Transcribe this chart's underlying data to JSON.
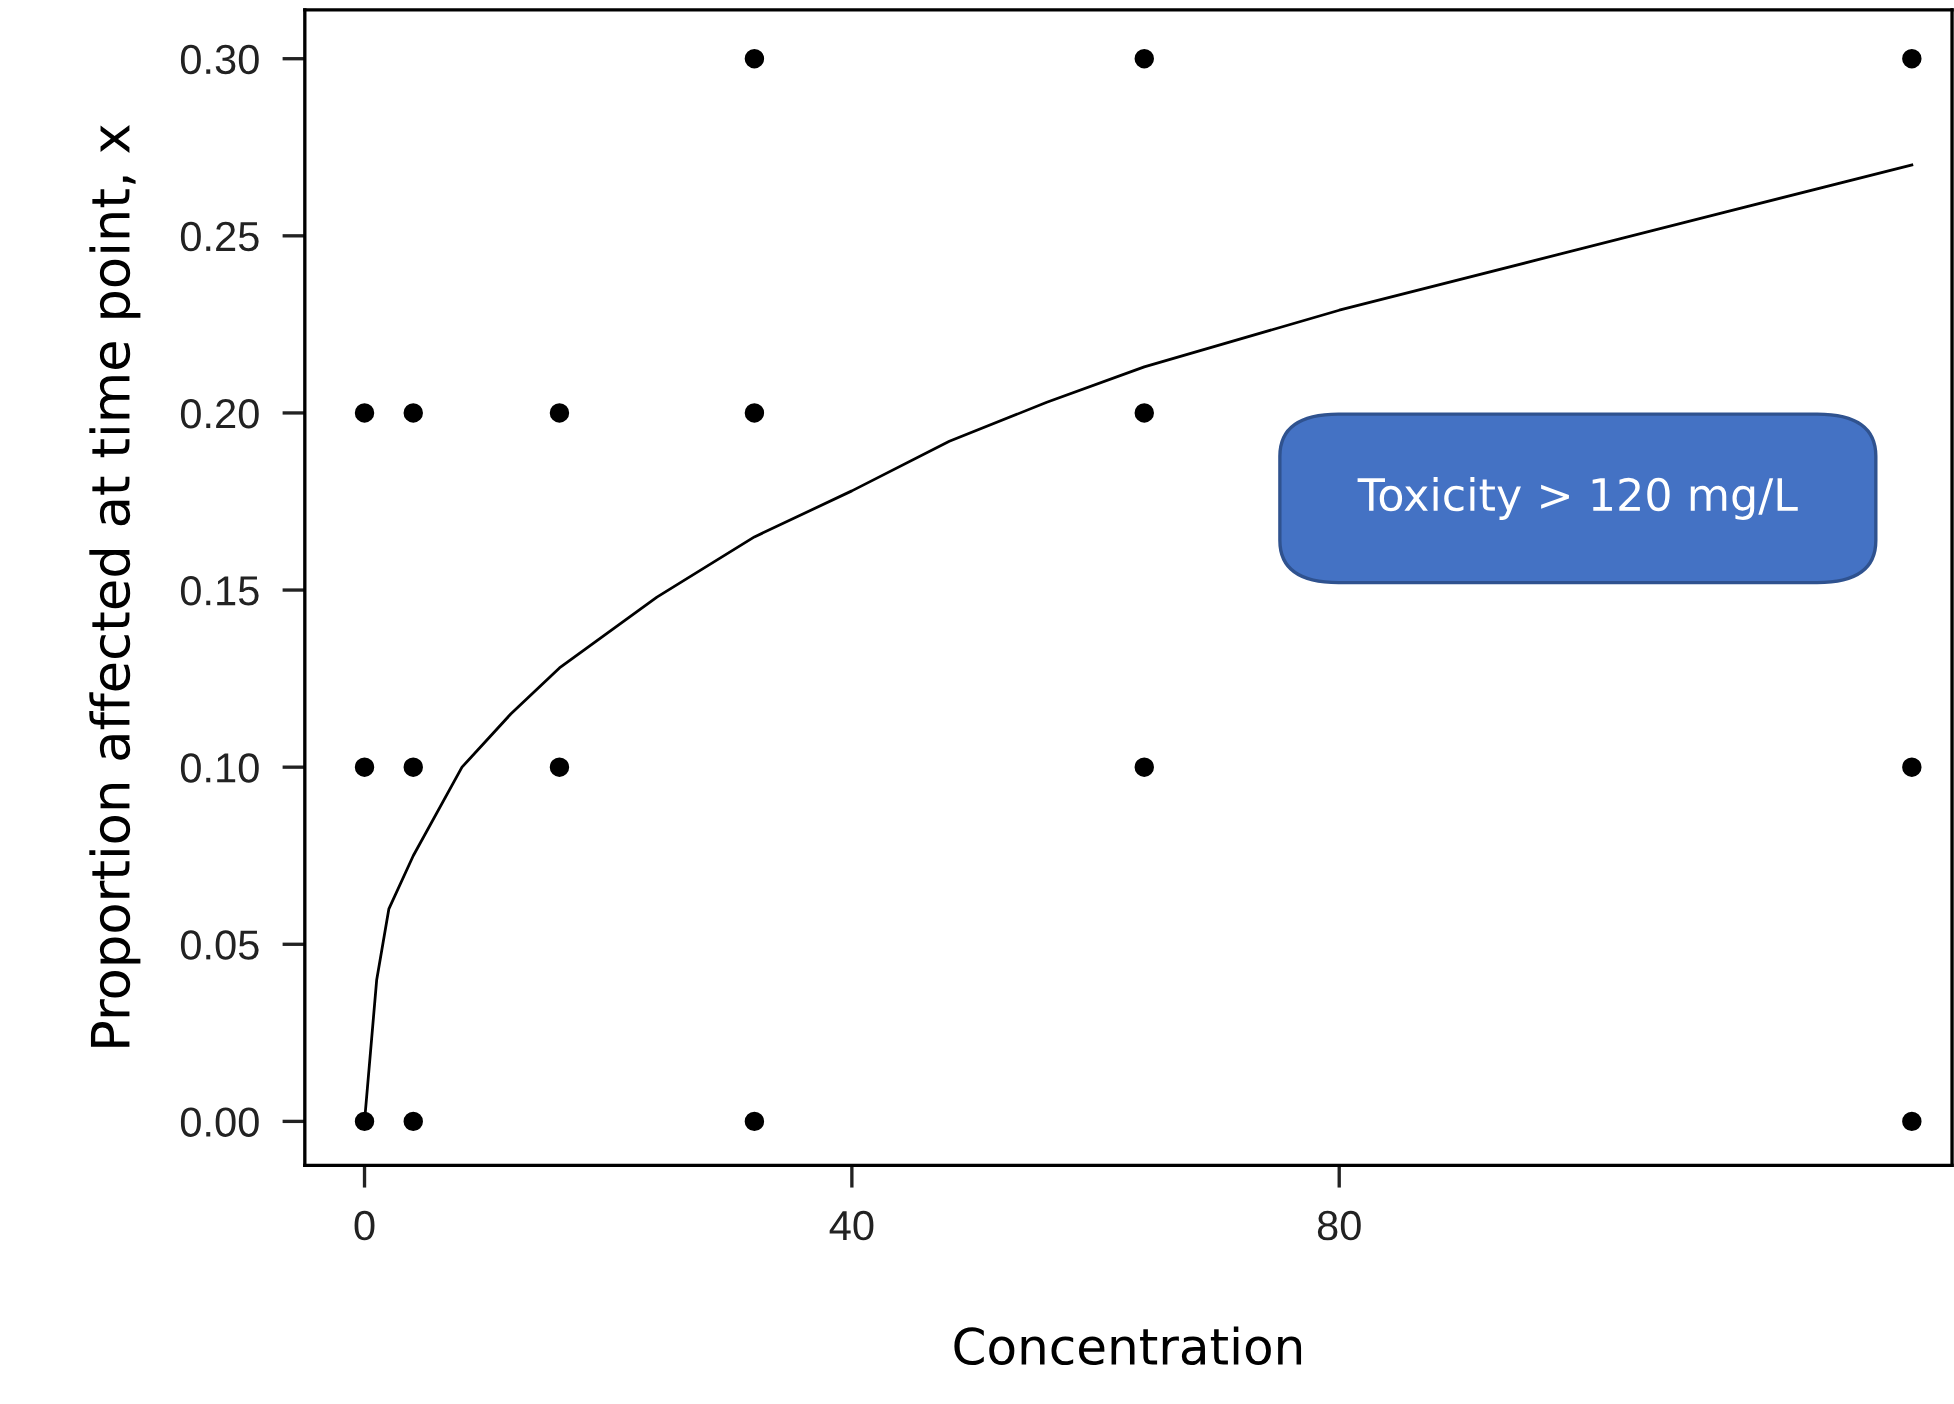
{
  "chart_data": {
    "type": "scatter",
    "xlabel": "Concentration",
    "ylabel": "Proportion affected at time point, x",
    "annotations": [
      "Toxicity > 120 mg/L"
    ],
    "xlim": [
      -4.9,
      130.3
    ],
    "ylim": [
      -0.0124,
      0.3138
    ],
    "xticks": [
      0,
      40,
      80
    ],
    "yticks": [
      {
        "value": 0,
        "label": "0.00"
      },
      {
        "value": 0.05,
        "label": "0.05"
      },
      {
        "value": 0.1,
        "label": "0.10"
      },
      {
        "value": 0.15,
        "label": "0.15"
      },
      {
        "value": 0.2,
        "label": "0.20"
      },
      {
        "value": 0.25,
        "label": "0.25"
      },
      {
        "value": 0.3,
        "label": "0.30"
      }
    ],
    "grid": false,
    "marker": "circle",
    "series": [
      {
        "color": "#000000",
        "x": [
          0,
          0,
          0,
          4,
          4,
          4,
          16,
          16,
          32,
          32,
          32,
          64,
          64,
          64,
          127,
          127,
          127
        ],
        "values": [
          0.2,
          0.1,
          0.0,
          0.2,
          0.1,
          0.0,
          0.2,
          0.1,
          0.3,
          0.2,
          0.0,
          0.3,
          0.2,
          0.1,
          0.3,
          0.1,
          0.0
        ]
      },
      {
        "type": "line",
        "color": "#000000",
        "marker": "none",
        "line_style": "solid",
        "x": [
          0,
          0.5,
          1,
          2,
          4,
          8,
          12,
          16,
          24,
          32,
          40,
          48,
          56,
          64,
          80,
          96,
          112,
          127
        ],
        "values": [
          0,
          0.02,
          0.04,
          0.06,
          0.075,
          0.1,
          0.115,
          0.128,
          0.148,
          0.165,
          0.178,
          0.192,
          0.203,
          0.213,
          0.229,
          0.243,
          0.257,
          0.27
        ]
      }
    ]
  }
}
